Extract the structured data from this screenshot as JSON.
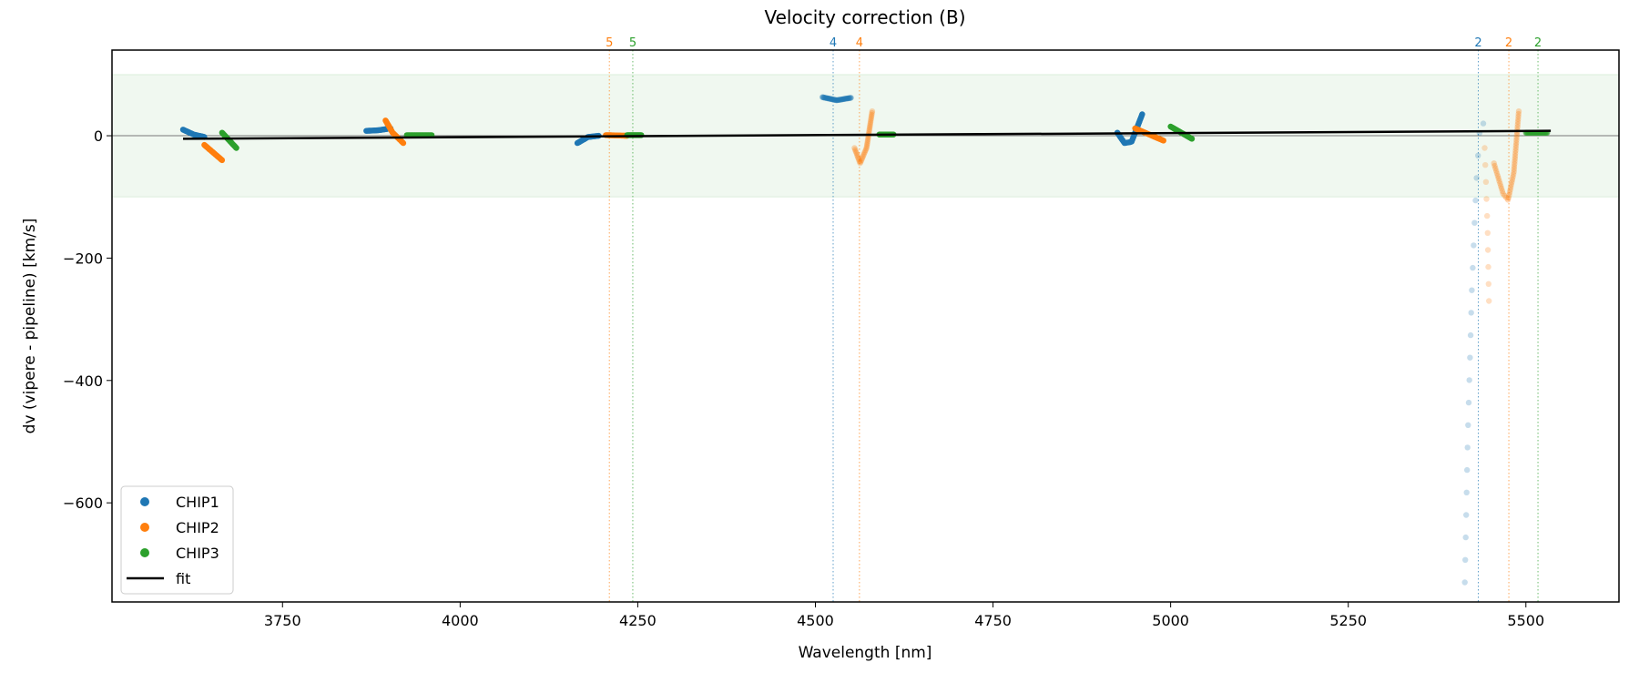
{
  "chart_data": {
    "type": "scatter",
    "title": "Velocity correction (B)",
    "xlabel": "Wavelength [nm]",
    "ylabel": "dv (vipere - pipeline) [km/s]",
    "xlim": [
      3510,
      5631
    ],
    "ylim": [
      -762,
      140
    ],
    "xticks": [
      3750,
      4000,
      4250,
      4500,
      4750,
      5000,
      5250,
      5500
    ],
    "yticks": [
      0,
      -200,
      -400,
      -600
    ],
    "grid": false,
    "legend_placement": "lower-left",
    "band": {
      "from": -100,
      "to": 100,
      "color": "#2ca02c"
    },
    "zero_line": 0,
    "colors": {
      "CHIP1": "#1f77b4",
      "CHIP2": "#ff7f0e",
      "CHIP3": "#2ca02c",
      "fit": "#000000"
    },
    "legend": [
      "CHIP1",
      "CHIP2",
      "CHIP3",
      "fit"
    ],
    "series": [
      {
        "name": "CHIP1",
        "segments": [
          {
            "alpha": 1,
            "n": 30,
            "points": [
              [
                3610,
                10
              ],
              [
                3625,
                2
              ],
              [
                3640,
                -2
              ]
            ]
          },
          {
            "alpha": 1,
            "n": 30,
            "points": [
              [
                3868,
                8
              ],
              [
                3885,
                9
              ],
              [
                3902,
                12
              ]
            ]
          },
          {
            "alpha": 1,
            "n": 30,
            "points": [
              [
                4165,
                -12
              ],
              [
                4180,
                -2
              ],
              [
                4195,
                0
              ]
            ]
          },
          {
            "alpha": 0.5,
            "n": 30,
            "points": [
              [
                4510,
                63
              ],
              [
                4530,
                58
              ],
              [
                4550,
                62
              ]
            ]
          },
          {
            "alpha": 1,
            "n": 40,
            "points": [
              [
                4925,
                5
              ],
              [
                4935,
                -12
              ],
              [
                4945,
                -10
              ],
              [
                4960,
                35
              ]
            ]
          },
          {
            "alpha": 0.25,
            "n": 22,
            "points": [
              [
                5414,
                -730
              ],
              [
                5418,
                -500
              ],
              [
                5424,
                -250
              ],
              [
                5430,
                -80
              ],
              [
                5436,
                30
              ],
              [
                5440,
                20
              ]
            ]
          }
        ]
      },
      {
        "name": "CHIP2",
        "segments": [
          {
            "alpha": 1,
            "n": 30,
            "points": [
              [
                3640,
                -15
              ],
              [
                3665,
                -40
              ]
            ]
          },
          {
            "alpha": 1,
            "n": 30,
            "points": [
              [
                3895,
                25
              ],
              [
                3905,
                5
              ],
              [
                3920,
                -12
              ]
            ]
          },
          {
            "alpha": 1,
            "n": 30,
            "points": [
              [
                4205,
                1
              ],
              [
                4235,
                0
              ]
            ]
          },
          {
            "alpha": 0.3,
            "n": 40,
            "points": [
              [
                4555,
                -20
              ],
              [
                4563,
                -45
              ],
              [
                4572,
                -20
              ],
              [
                4580,
                40
              ]
            ]
          },
          {
            "alpha": 1,
            "n": 30,
            "points": [
              [
                4950,
                12
              ],
              [
                4990,
                -8
              ]
            ]
          },
          {
            "alpha": 0.3,
            "n": 50,
            "points": [
              [
                5455,
                -45
              ],
              [
                5468,
                -95
              ],
              [
                5475,
                -105
              ],
              [
                5483,
                -60
              ],
              [
                5490,
                40
              ]
            ]
          },
          {
            "alpha": 0.25,
            "n": 10,
            "points": [
              [
                5442,
                -20
              ],
              [
                5446,
                -150
              ],
              [
                5448,
                -270
              ]
            ]
          }
        ]
      },
      {
        "name": "CHIP3",
        "segments": [
          {
            "alpha": 1,
            "n": 25,
            "points": [
              [
                3665,
                5
              ],
              [
                3685,
                -20
              ]
            ]
          },
          {
            "alpha": 1,
            "n": 25,
            "points": [
              [
                3925,
                1
              ],
              [
                3960,
                1
              ]
            ]
          },
          {
            "alpha": 1,
            "n": 25,
            "points": [
              [
                4235,
                1
              ],
              [
                4255,
                1
              ]
            ]
          },
          {
            "alpha": 1,
            "n": 25,
            "points": [
              [
                4590,
                2
              ],
              [
                4610,
                2
              ]
            ]
          },
          {
            "alpha": 1,
            "n": 30,
            "points": [
              [
                5000,
                15
              ],
              [
                5030,
                -5
              ]
            ]
          },
          {
            "alpha": 0.6,
            "n": 25,
            "points": [
              [
                5500,
                5
              ],
              [
                5530,
                5
              ]
            ]
          }
        ]
      }
    ],
    "fit": {
      "x": [
        3610,
        5535
      ],
      "y": [
        -5,
        8
      ]
    },
    "order_lines": [
      {
        "x": 4210,
        "label": "5",
        "chip": "CHIP2"
      },
      {
        "x": 4243,
        "label": "5",
        "chip": "CHIP3"
      },
      {
        "x": 4525,
        "label": "4",
        "chip": "CHIP1"
      },
      {
        "x": 4562,
        "label": "4",
        "chip": "CHIP2"
      },
      {
        "x": 5433,
        "label": "2",
        "chip": "CHIP1"
      },
      {
        "x": 5476,
        "label": "2",
        "chip": "CHIP2"
      },
      {
        "x": 5517,
        "label": "2",
        "chip": "CHIP3"
      }
    ]
  }
}
